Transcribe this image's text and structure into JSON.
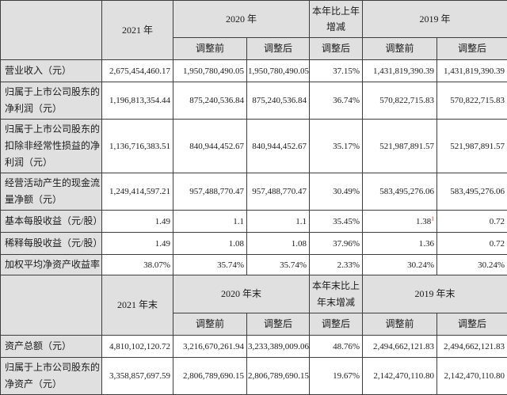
{
  "table": {
    "colors": {
      "header_bg": "#e0e0e0",
      "cell_bg": "#ffffff",
      "border": "#3d3d3d",
      "superscript": "#cc1111"
    },
    "sections": [
      {
        "header_rows": [
          [
            {
              "label": "",
              "rowspan": 2
            },
            {
              "label": "2021 年",
              "rowspan": 2
            },
            {
              "label": "2020 年",
              "colspan": 2
            },
            {
              "label": "本年比上年增减"
            },
            {
              "label": "2019 年",
              "colspan": 2
            }
          ],
          [
            {
              "label": "调整前"
            },
            {
              "label": "调整后"
            },
            {
              "label": "调整后"
            },
            {
              "label": "调整前"
            },
            {
              "label": "调整后"
            }
          ]
        ],
        "rows": [
          {
            "label": "营业收入（元）",
            "values": [
              "2,675,454,460.17",
              "1,950,780,490.05",
              "1,950,780,490.05",
              "37.15%",
              "1,431,819,390.39",
              "1,431,819,390.39"
            ]
          },
          {
            "label": "归属于上市公司股东的净利润（元）",
            "values": [
              "1,196,813,354.44",
              "875,240,536.84",
              "875,240,536.84",
              "36.74%",
              "570,822,715.83",
              "570,822,715.83"
            ]
          },
          {
            "label": "归属于上市公司股东的扣除非经常性损益的净利润（元）",
            "values": [
              "1,136,716,383.51",
              "840,944,452.67",
              "840,944,452.67",
              "35.17%",
              "521,987,891.57",
              "521,987,891.57"
            ]
          },
          {
            "label": "经营活动产生的现金流量净额（元）",
            "values": [
              "1,249,414,597.21",
              "957,488,770.47",
              "957,488,770.47",
              "30.49%",
              "583,495,276.06",
              "583,495,276.06"
            ]
          },
          {
            "label": "基本每股收益（元/股）",
            "values": [
              "1.49",
              "1.1",
              "1.1",
              "35.45%",
              {
                "text": "1.38",
                "superscript": "1"
              },
              "0.72"
            ]
          },
          {
            "label": "稀释每股收益（元/股）",
            "values": [
              "1.49",
              "1.08",
              "1.08",
              "37.96%",
              "1.36",
              "0.72"
            ]
          },
          {
            "label": "加权平均净资产收益率",
            "values": [
              "38.07%",
              "35.74%",
              "35.74%",
              "2.33%",
              "30.24%",
              "30.24%"
            ]
          }
        ]
      },
      {
        "header_rows": [
          [
            {
              "label": "",
              "rowspan": 2
            },
            {
              "label": "2021 年末",
              "rowspan": 2
            },
            {
              "label": "2020 年末",
              "colspan": 2
            },
            {
              "label": "本年末比上年末增减"
            },
            {
              "label": "2019 年末",
              "colspan": 2
            }
          ],
          [
            {
              "label": "调整前"
            },
            {
              "label": "调整后"
            },
            {
              "label": "调整后"
            },
            {
              "label": "调整前"
            },
            {
              "label": "调整后"
            }
          ]
        ],
        "rows": [
          {
            "label": "资产总额（元）",
            "values": [
              "4,810,102,120.72",
              "3,216,670,261.94",
              "3,233,389,009.06",
              "48.76%",
              "2,494,662,121.83",
              "2,494,662,121.83"
            ]
          },
          {
            "label": "归属于上市公司股东的净资产（元）",
            "values": [
              "3,358,857,697.59",
              "2,806,789,690.15",
              "2,806,789,690.15",
              "19.67%",
              "2,142,470,110.80",
              "2,142,470,110.80"
            ]
          }
        ]
      }
    ]
  }
}
